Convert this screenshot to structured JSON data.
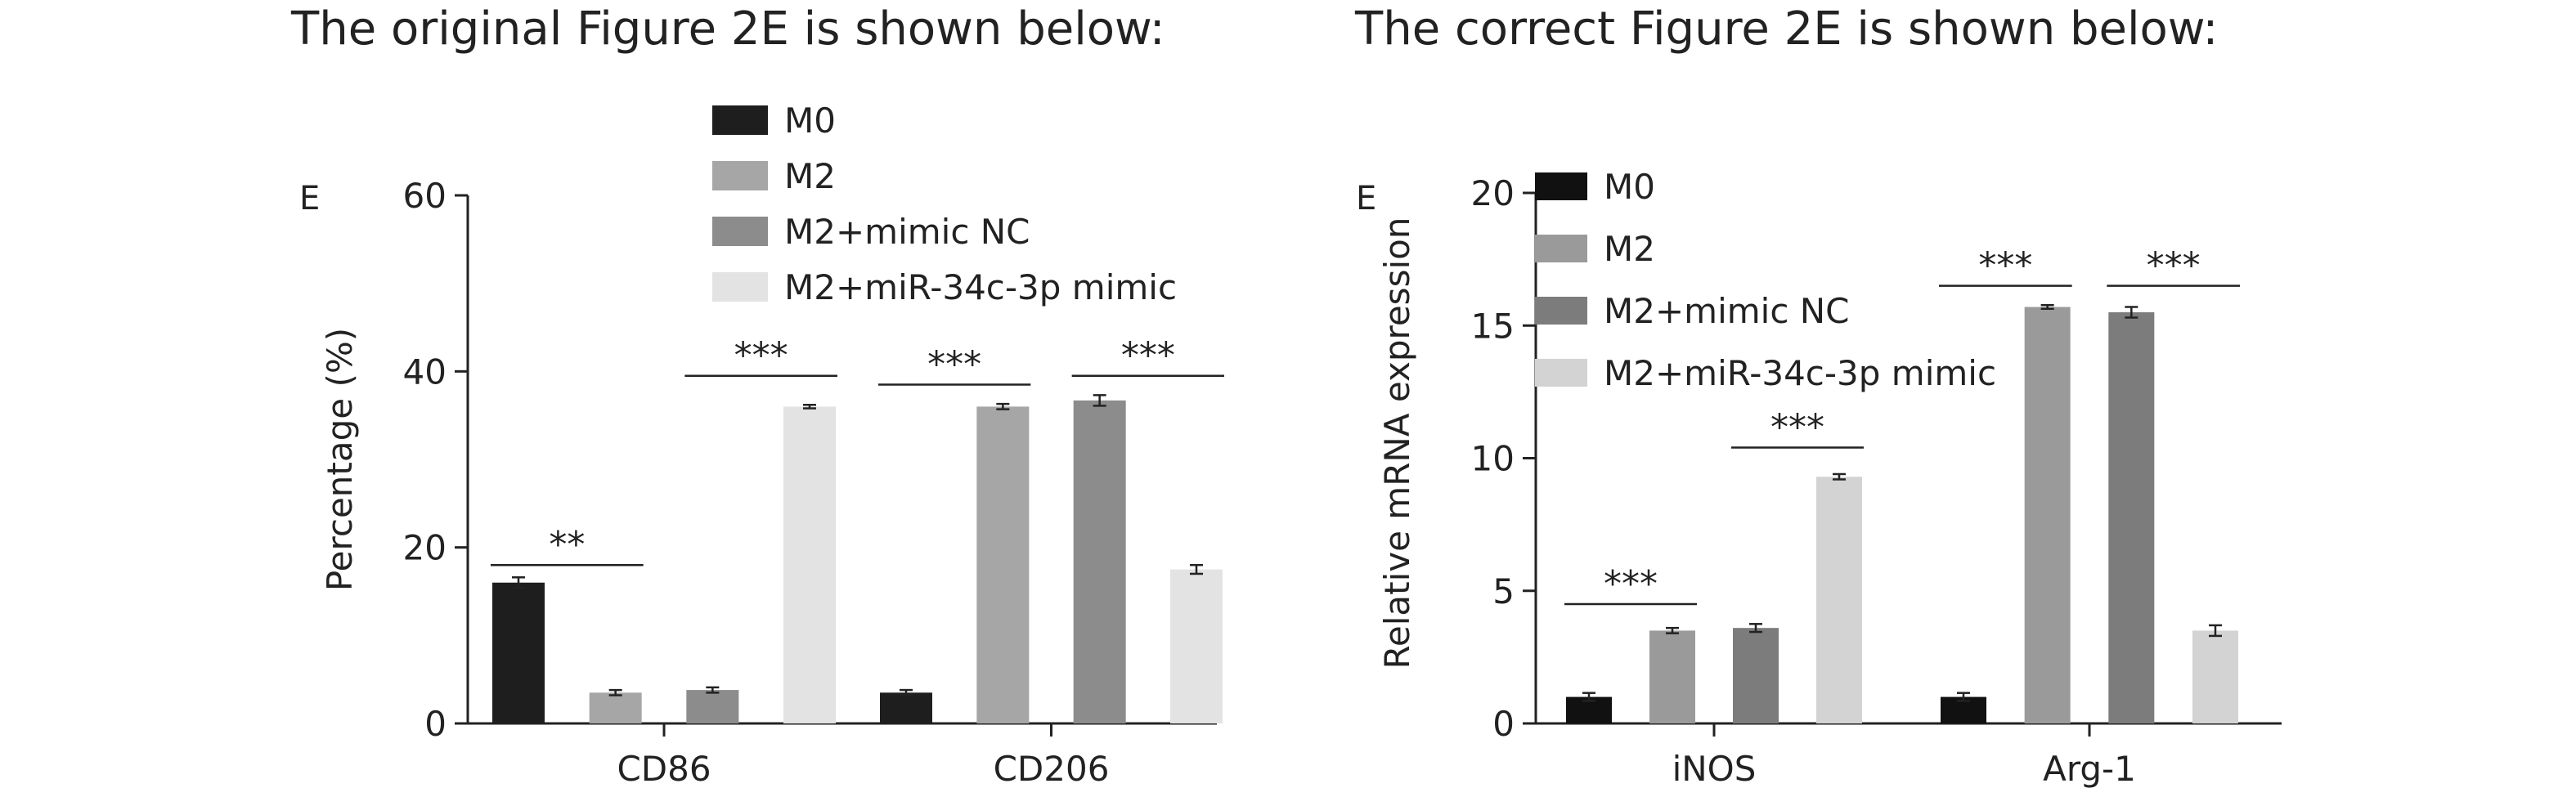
{
  "headings": {
    "left": "The original Figure 2E is shown below:",
    "right": "The correct Figure 2E is shown below:"
  },
  "chart_data": [
    {
      "type": "bar",
      "panel_label": "E",
      "ylabel": "Percentage (%)",
      "xlabel": "",
      "ylim": [
        0,
        60
      ],
      "yticks": [
        0,
        20,
        40,
        60
      ],
      "categories": [
        "CD86",
        "CD206"
      ],
      "legend_position": "top-right",
      "series": [
        {
          "name": "M0",
          "color": "#1e1e1e",
          "values": [
            16.0,
            3.5
          ],
          "errors": [
            0.6,
            0.3
          ]
        },
        {
          "name": "M2",
          "color": "#a6a6a6",
          "values": [
            3.5,
            36.0
          ],
          "errors": [
            0.3,
            0.3
          ]
        },
        {
          "name": "M2+mimic NC",
          "color": "#8c8c8c",
          "values": [
            3.8,
            36.7
          ],
          "errors": [
            0.3,
            0.6
          ]
        },
        {
          "name": "M2+miR-34c-3p mimic",
          "color": "#e3e3e3",
          "values": [
            36.0,
            17.5
          ],
          "errors": [
            0.2,
            0.5
          ]
        }
      ],
      "significance": [
        {
          "text": "**",
          "category": 0,
          "from": 0,
          "to": 1,
          "y": 18
        },
        {
          "text": "***",
          "category": 0,
          "from": 2,
          "to": 3,
          "y": 39.5
        },
        {
          "text": "***",
          "category": 1,
          "from": 0,
          "to": 1,
          "y": 38.5
        },
        {
          "text": "***",
          "category": 1,
          "from": 2,
          "to": 3,
          "y": 39.5
        }
      ]
    },
    {
      "type": "bar",
      "panel_label": "E",
      "ylabel": "Relative mRNA expression",
      "xlabel": "",
      "ylim": [
        0,
        20
      ],
      "yticks": [
        0,
        5,
        10,
        15,
        20
      ],
      "categories": [
        "iNOS",
        "Arg-1"
      ],
      "legend_position": "top-left",
      "series": [
        {
          "name": "M0",
          "color": "#111111",
          "values": [
            1.0,
            1.0
          ],
          "errors": [
            0.15,
            0.15
          ]
        },
        {
          "name": "M2",
          "color": "#9a9a9a",
          "values": [
            3.5,
            15.7
          ],
          "errors": [
            0.1,
            0.07
          ]
        },
        {
          "name": "M2+mimic NC",
          "color": "#7c7c7c",
          "values": [
            3.6,
            15.5
          ],
          "errors": [
            0.15,
            0.2
          ]
        },
        {
          "name": "M2+miR-34c-3p mimic",
          "color": "#d3d3d3",
          "values": [
            9.3,
            3.5
          ],
          "errors": [
            0.1,
            0.2
          ]
        }
      ],
      "significance": [
        {
          "text": "***",
          "category": 0,
          "from": 0,
          "to": 1,
          "y": 4.5
        },
        {
          "text": "***",
          "category": 0,
          "from": 2,
          "to": 3,
          "y": 10.4
        },
        {
          "text": "***",
          "category": 1,
          "from": 0,
          "to": 1,
          "y": 16.5
        },
        {
          "text": "***",
          "category": 1,
          "from": 2,
          "to": 3,
          "y": 16.5
        }
      ]
    }
  ]
}
